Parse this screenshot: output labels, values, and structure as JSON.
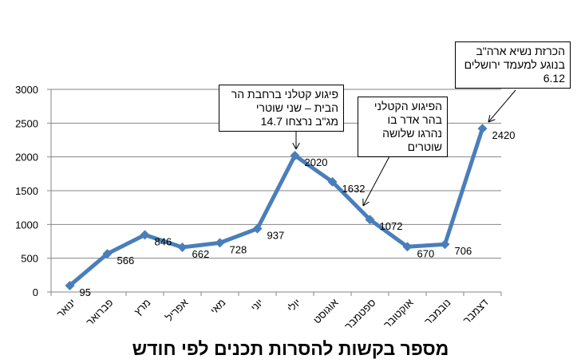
{
  "chart_data": {
    "type": "line",
    "title": "מספר בקשות להסרות תכנים לפי חודש",
    "categories": [
      "ינואר",
      "פברואר",
      "מרץ",
      "אפריל",
      "מאי",
      "יוני",
      "יולי",
      "אוגוסט",
      "ספטמבר",
      "אוקטובר",
      "נובמבר",
      "דצמבר"
    ],
    "series": [
      {
        "values": [
          95,
          566,
          846,
          662,
          728,
          937,
          2020,
          1632,
          1072,
          670,
          706,
          2420
        ]
      }
    ],
    "ylim": [
      0,
      3000
    ],
    "yticks": [
      0,
      500,
      1000,
      1500,
      2000,
      2500,
      3000
    ],
    "grid": true,
    "legend": "none",
    "line_color": "#4a7ebb",
    "annotations": [
      {
        "category": "יולי",
        "lines": [
          "פיגוע קטלני ברחבת הר",
          "הבית – שני שוטרי",
          "מג\"ב נרצחו 14.7"
        ]
      },
      {
        "category": "ספטמבר",
        "lines": [
          "הפיגוע הקטלני",
          "בהר אדר בו",
          "נהרגו שלושה",
          "שוטרים"
        ]
      },
      {
        "category": "דצמבר",
        "lines": [
          "הכרזת נשיא ארה\"ב",
          "בנוגע למעמד ירושלים",
          "6.12"
        ]
      }
    ]
  }
}
